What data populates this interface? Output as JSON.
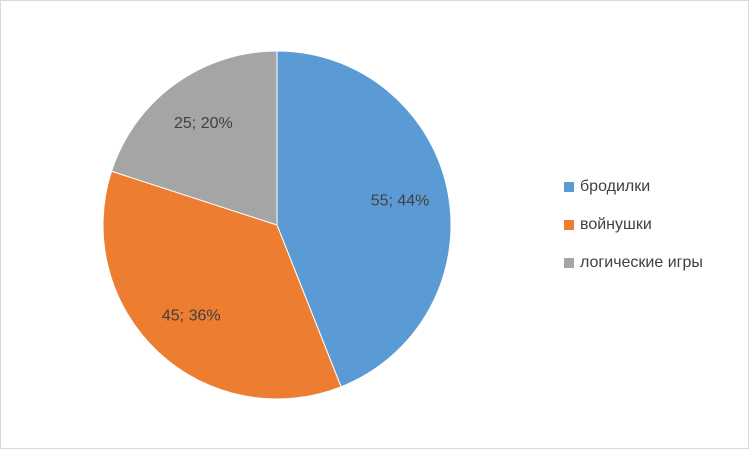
{
  "chart_data": {
    "type": "pie",
    "categories": [
      "бродилки",
      "войнушки",
      "логические игры"
    ],
    "values": [
      55,
      45,
      25
    ],
    "value_labels": [
      "55; 44%",
      "45; 36%",
      "25; 20%"
    ],
    "colors": [
      "#5b9bd5",
      "#ed7d31",
      "#a5a5a5"
    ],
    "legend": "right"
  }
}
